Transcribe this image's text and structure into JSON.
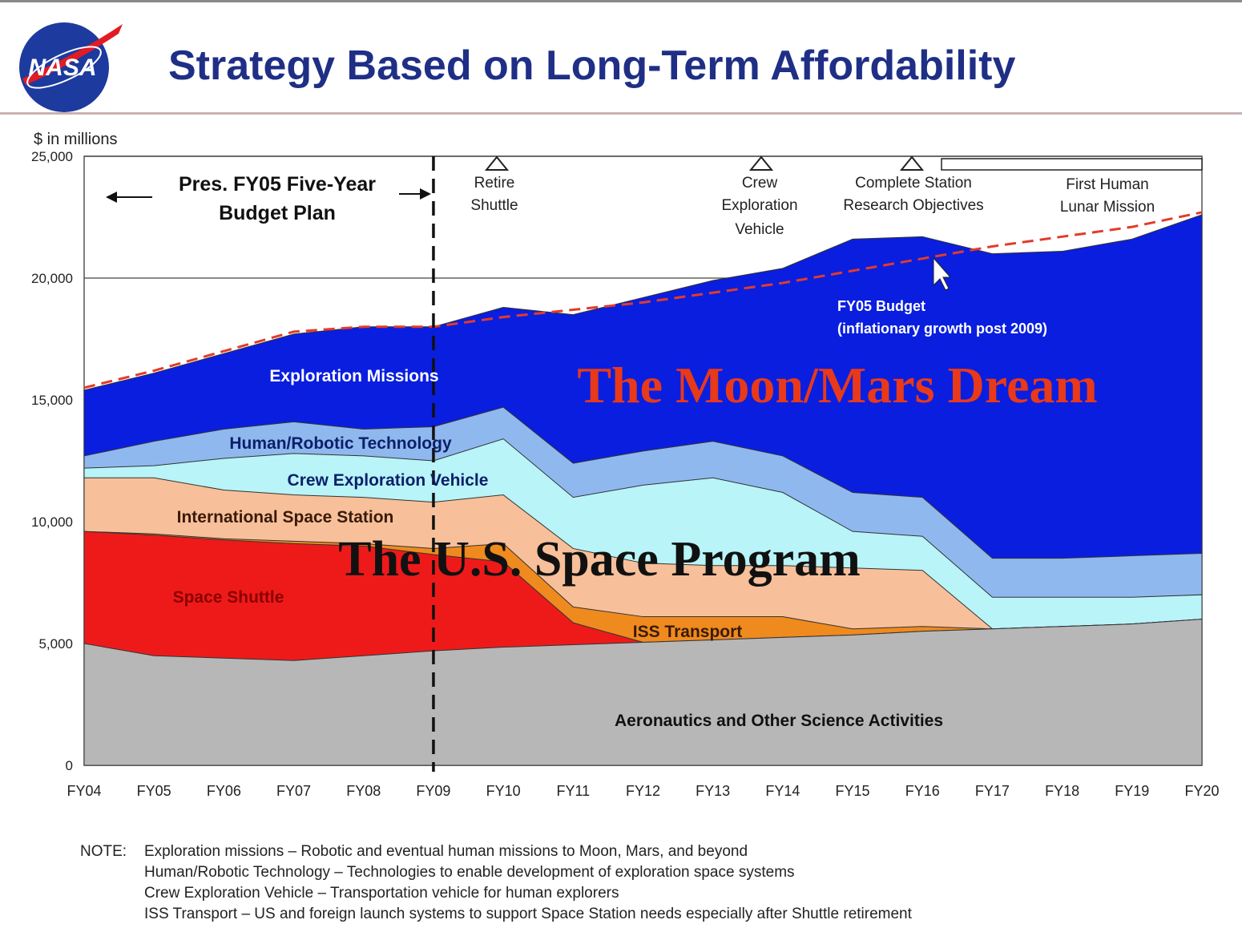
{
  "page": {
    "title": "Strategy Based on Long-Term Affordability",
    "logo_text": "NASA"
  },
  "chart_data": {
    "type": "area",
    "ylabel": "$ in millions",
    "categories": [
      "FY04",
      "FY05",
      "FY06",
      "FY07",
      "FY08",
      "FY09",
      "FY10",
      "FY11",
      "FY12",
      "FY13",
      "FY14",
      "FY15",
      "FY16",
      "FY17",
      "FY18",
      "FY19",
      "FY20"
    ],
    "y_ticks": [
      "0",
      "5,000",
      "10,000",
      "15,000",
      "20,000",
      "25,000"
    ],
    "ylim": [
      0,
      25000
    ],
    "grid": true,
    "stacked_series_cumulative_tops": [
      {
        "name": "Aeronautics and Other Science Activities",
        "color": "#b7b7b7",
        "values": [
          5000,
          4500,
          4400,
          4300,
          4500,
          4700,
          4850,
          4950,
          5050,
          5150,
          5250,
          5350,
          5500,
          5600,
          5700,
          5800,
          6000
        ]
      },
      {
        "name": "Space Shuttle",
        "color": "#ee1a1a",
        "values": [
          9600,
          9450,
          9250,
          9100,
          9000,
          8650,
          8350,
          5850,
          5050,
          5150,
          5250,
          5350,
          5500,
          5600,
          5700,
          5800,
          6000
        ]
      },
      {
        "name": "ISS Transport",
        "color": "#ef8a1e",
        "values": [
          9600,
          9500,
          9300,
          9200,
          9100,
          8900,
          9100,
          6500,
          6100,
          6100,
          6100,
          5600,
          5700,
          5600,
          5700,
          5800,
          6000
        ]
      },
      {
        "name": "International Space Station",
        "color": "#f7c09a",
        "values": [
          11800,
          11800,
          11300,
          11100,
          11000,
          10800,
          11100,
          8900,
          8300,
          8200,
          8200,
          8100,
          8000,
          5600,
          5700,
          5800,
          6000
        ]
      },
      {
        "name": "Crew Exploration Vehicle",
        "color": "#b8f4f8",
        "values": [
          12200,
          12300,
          12600,
          12800,
          12700,
          12500,
          13400,
          11000,
          11500,
          11800,
          11200,
          9600,
          9400,
          6900,
          6900,
          6900,
          7000
        ]
      },
      {
        "name": "Human/Robotic Technology",
        "color": "#8fb8ef",
        "values": [
          12700,
          13300,
          13800,
          14100,
          13800,
          13900,
          14700,
          12400,
          12900,
          13300,
          12700,
          11200,
          11000,
          8500,
          8500,
          8600,
          8700
        ]
      },
      {
        "name": "Exploration Missions",
        "color": "#0a1ee0",
        "values": [
          15400,
          16100,
          16900,
          17700,
          18000,
          18000,
          18800,
          18500,
          19200,
          19900,
          20400,
          21600,
          21700,
          21000,
          21100,
          21600,
          22600
        ]
      }
    ],
    "fy05_budget_line": {
      "name": "FY05 Budget (inflationary growth post 2009)",
      "values": [
        15500,
        16200,
        17000,
        17800,
        18000,
        18000,
        18400,
        18700,
        19000,
        19400,
        19800,
        20300,
        20800,
        21300,
        21700,
        22100,
        22700
      ]
    },
    "series_labels": {
      "exploration_missions": "Exploration Missions",
      "human_robotic": "Human/Robotic Technology",
      "cev": "Crew Exploration Vehicle",
      "iss": "International Space Station",
      "shuttle": "Space Shuttle",
      "iss_transport": "ISS Transport",
      "aeronautics": "Aeronautics and Other Science Activities"
    },
    "annotations": {
      "pres_budget_line1": "Pres. FY05 Five-Year",
      "pres_budget_line2": "Budget Plan",
      "retire1": "Retire",
      "retire2": "Shuttle",
      "crew1": "Crew",
      "crew2": "Exploration",
      "crew3": "Vehicle",
      "station1": "Complete Station",
      "station2": "Research Objectives",
      "lunar1": "First Human",
      "lunar2": "Lunar Mission",
      "fy05_1": "FY05 Budget",
      "fy05_2": "(inflationary growth post 2009)",
      "moon_mars": "The Moon/Mars Dream",
      "us_program": "The U.S. Space Program"
    },
    "colors": {
      "moon_mars": "#e8391a",
      "us_program": "#111111",
      "budget_line": "#e23b2a",
      "axis_text": "#222222"
    }
  },
  "notes": {
    "label": "NOTE:",
    "lines": [
      "Exploration missions – Robotic and eventual human missions to Moon, Mars, and beyond",
      "Human/Robotic Technology – Technologies to enable development of exploration space systems",
      "Crew Exploration Vehicle – Transportation vehicle for human explorers",
      "ISS Transport – US and foreign launch systems to support Space Station needs especially after Shuttle retirement"
    ]
  }
}
